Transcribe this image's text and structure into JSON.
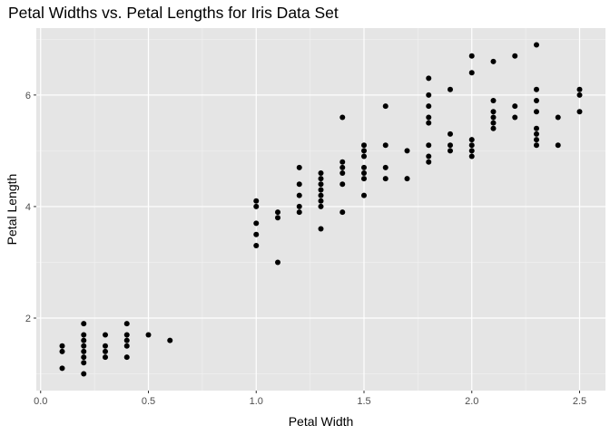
{
  "chart_data": {
    "type": "scatter",
    "title": "Petal Widths vs. Petal Lengths for Iris Data Set",
    "xlabel": "Petal Width",
    "ylabel": "Petal Length",
    "xlim": [
      -0.02,
      2.62
    ],
    "ylim": [
      0.7,
      7.2
    ],
    "x_ticks": [
      0.0,
      0.5,
      1.0,
      1.5,
      2.0,
      2.5
    ],
    "x_tick_labels": [
      "0.0",
      "0.5",
      "1.0",
      "1.5",
      "2.0",
      "2.5"
    ],
    "y_ticks": [
      2,
      4,
      6
    ],
    "y_tick_labels": [
      "2",
      "4",
      "6"
    ],
    "grid": true,
    "colors": {
      "panel": "#e5e5e5",
      "grid_major": "#ffffff",
      "grid_minor": "#f2f2f2",
      "point": "#000000",
      "tick": "#333333"
    },
    "points": [
      [
        0.1,
        1.1
      ],
      [
        0.1,
        1.4
      ],
      [
        0.1,
        1.5
      ],
      [
        0.2,
        1.0
      ],
      [
        0.2,
        1.2
      ],
      [
        0.2,
        1.3
      ],
      [
        0.2,
        1.4
      ],
      [
        0.2,
        1.5
      ],
      [
        0.2,
        1.6
      ],
      [
        0.2,
        1.7
      ],
      [
        0.2,
        1.9
      ],
      [
        0.3,
        1.3
      ],
      [
        0.3,
        1.4
      ],
      [
        0.3,
        1.5
      ],
      [
        0.3,
        1.7
      ],
      [
        0.4,
        1.3
      ],
      [
        0.4,
        1.5
      ],
      [
        0.4,
        1.6
      ],
      [
        0.4,
        1.7
      ],
      [
        0.4,
        1.9
      ],
      [
        0.5,
        1.7
      ],
      [
        0.6,
        1.6
      ],
      [
        1.0,
        3.3
      ],
      [
        1.0,
        3.5
      ],
      [
        1.0,
        3.7
      ],
      [
        1.0,
        4.0
      ],
      [
        1.0,
        4.1
      ],
      [
        1.1,
        3.0
      ],
      [
        1.1,
        3.8
      ],
      [
        1.1,
        3.9
      ],
      [
        1.2,
        3.9
      ],
      [
        1.2,
        4.0
      ],
      [
        1.2,
        4.2
      ],
      [
        1.2,
        4.4
      ],
      [
        1.2,
        4.7
      ],
      [
        1.3,
        3.6
      ],
      [
        1.3,
        4.0
      ],
      [
        1.3,
        4.1
      ],
      [
        1.3,
        4.2
      ],
      [
        1.3,
        4.3
      ],
      [
        1.3,
        4.4
      ],
      [
        1.3,
        4.5
      ],
      [
        1.3,
        4.6
      ],
      [
        1.4,
        3.9
      ],
      [
        1.4,
        4.4
      ],
      [
        1.4,
        4.6
      ],
      [
        1.4,
        4.7
      ],
      [
        1.4,
        4.8
      ],
      [
        1.4,
        5.6
      ],
      [
        1.5,
        4.2
      ],
      [
        1.5,
        4.5
      ],
      [
        1.5,
        4.6
      ],
      [
        1.5,
        4.7
      ],
      [
        1.5,
        4.9
      ],
      [
        1.5,
        5.0
      ],
      [
        1.5,
        5.1
      ],
      [
        1.6,
        4.5
      ],
      [
        1.6,
        4.7
      ],
      [
        1.6,
        5.1
      ],
      [
        1.6,
        5.8
      ],
      [
        1.7,
        4.5
      ],
      [
        1.7,
        5.0
      ],
      [
        1.8,
        4.8
      ],
      [
        1.8,
        4.9
      ],
      [
        1.8,
        5.1
      ],
      [
        1.8,
        5.5
      ],
      [
        1.8,
        5.6
      ],
      [
        1.8,
        5.8
      ],
      [
        1.8,
        6.0
      ],
      [
        1.8,
        6.3
      ],
      [
        1.9,
        5.0
      ],
      [
        1.9,
        5.1
      ],
      [
        1.9,
        5.3
      ],
      [
        1.9,
        6.1
      ],
      [
        2.0,
        4.9
      ],
      [
        2.0,
        5.0
      ],
      [
        2.0,
        5.1
      ],
      [
        2.0,
        5.2
      ],
      [
        2.0,
        6.4
      ],
      [
        2.0,
        6.7
      ],
      [
        2.1,
        5.4
      ],
      [
        2.1,
        5.5
      ],
      [
        2.1,
        5.6
      ],
      [
        2.1,
        5.7
      ],
      [
        2.1,
        5.9
      ],
      [
        2.1,
        6.6
      ],
      [
        2.2,
        5.6
      ],
      [
        2.2,
        5.8
      ],
      [
        2.2,
        6.7
      ],
      [
        2.3,
        5.1
      ],
      [
        2.3,
        5.2
      ],
      [
        2.3,
        5.3
      ],
      [
        2.3,
        5.4
      ],
      [
        2.3,
        5.7
      ],
      [
        2.3,
        5.9
      ],
      [
        2.3,
        6.1
      ],
      [
        2.3,
        6.9
      ],
      [
        2.4,
        5.1
      ],
      [
        2.4,
        5.6
      ],
      [
        2.5,
        5.7
      ],
      [
        2.5,
        6.0
      ],
      [
        2.5,
        6.1
      ]
    ]
  }
}
